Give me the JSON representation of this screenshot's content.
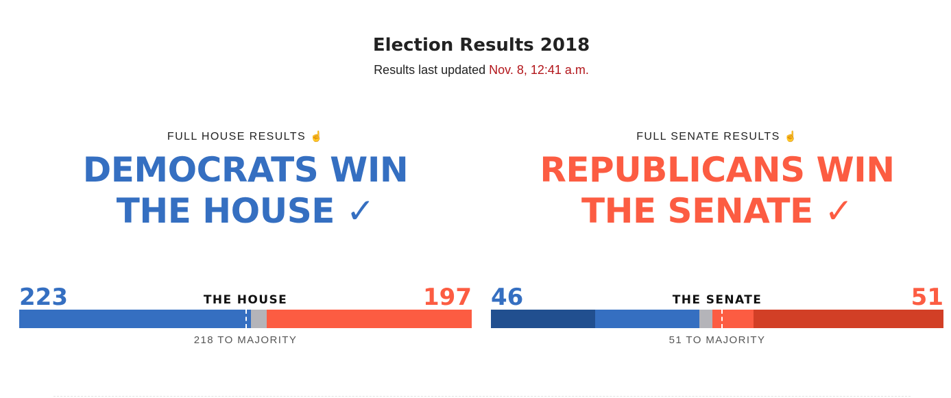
{
  "header": {
    "title": "Election Results 2018",
    "updated_prefix": "Results last updated ",
    "updated_time": "Nov. 8, 12:41 a.m."
  },
  "icons": {
    "hand": "pointing-hand-icon"
  },
  "colors": {
    "dem": "#356fc1",
    "dem_dark": "#214f8f",
    "rep": "#fc5c42",
    "rep_dark": "#d23f26",
    "undecided": "#b4b4b9",
    "timestamp": "#b2151a"
  },
  "house": {
    "kicker": "FULL HOUSE RESULTS",
    "headline_line1": "DEMOCRATS WIN",
    "headline_line2": "THE HOUSE ✓",
    "dem_count": "223",
    "rep_count": "197",
    "label": "THE HOUSE",
    "majority_label": "218 TO MAJORITY",
    "total_seats": 435,
    "majority": 218,
    "segments": [
      {
        "party": "dem",
        "seats": 223
      },
      {
        "party": "undecided",
        "seats": 15
      },
      {
        "party": "rep",
        "seats": 197
      }
    ]
  },
  "senate": {
    "kicker": "FULL SENATE RESULTS",
    "headline_line1": "REPUBLICANS WIN",
    "headline_line2": "THE SENATE ✓",
    "dem_count": "46",
    "rep_count": "51",
    "label": "THE SENATE",
    "majority_label": "51 TO MAJORITY",
    "total_seats": 100,
    "majority": 51,
    "segments": [
      {
        "party": "dem_dark",
        "seats": 23
      },
      {
        "party": "dem",
        "seats": 23
      },
      {
        "party": "undecided",
        "seats": 3
      },
      {
        "party": "rep",
        "seats": 9
      },
      {
        "party": "rep_dark",
        "seats": 42
      }
    ]
  }
}
